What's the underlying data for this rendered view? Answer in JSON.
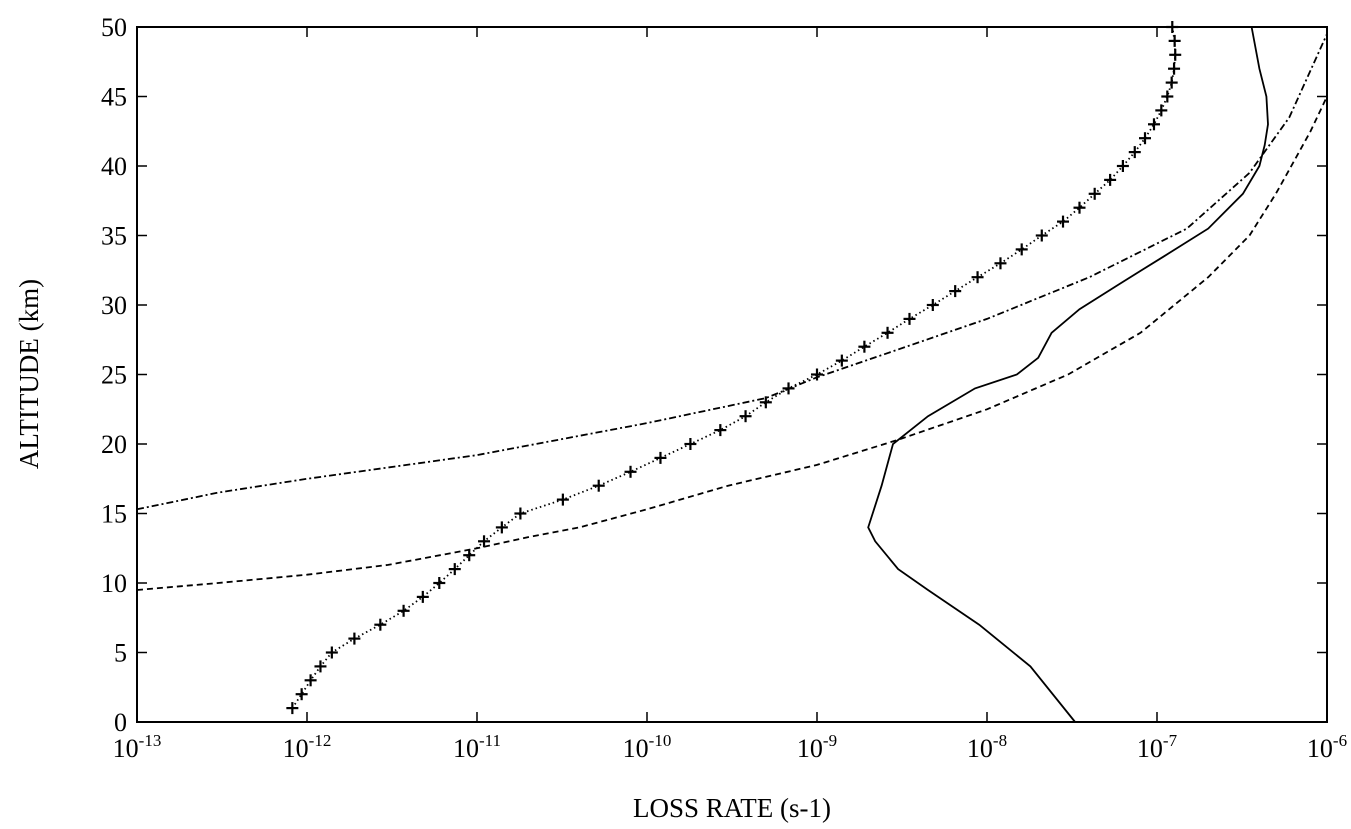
{
  "chart_data": {
    "type": "line",
    "title": "",
    "xlabel": "LOSS RATE (s-1)",
    "ylabel": "ALTITUDE (km)",
    "xscale": "log",
    "xlim": [
      1e-13,
      1e-06
    ],
    "ylim": [
      0,
      50
    ],
    "grid": false,
    "legend": "none",
    "x_ticks": [
      {
        "base": "10",
        "exp": "-13",
        "value": 1e-13
      },
      {
        "base": "10",
        "exp": "-12",
        "value": 1e-12
      },
      {
        "base": "10",
        "exp": "-11",
        "value": 1e-11
      },
      {
        "base": "10",
        "exp": "-10",
        "value": 1e-10
      },
      {
        "base": "10",
        "exp": "-9",
        "value": 1e-09
      },
      {
        "base": "10",
        "exp": "-8",
        "value": 1e-08
      },
      {
        "base": "10",
        "exp": "-7",
        "value": 1e-07
      },
      {
        "base": "10",
        "exp": "-6",
        "value": 1e-06
      }
    ],
    "y_ticks": [
      "0",
      "5",
      "10",
      "15",
      "20",
      "25",
      "30",
      "35",
      "40",
      "45",
      "50"
    ],
    "series": [
      {
        "style": "solid",
        "points": [
          [
            3.3e-08,
            0
          ],
          [
            1.8e-08,
            4
          ],
          [
            9e-09,
            7
          ],
          [
            4.5e-09,
            9.5
          ],
          [
            3e-09,
            11
          ],
          [
            2.2e-09,
            13
          ],
          [
            2e-09,
            14
          ],
          [
            2.4e-09,
            17
          ],
          [
            2.8e-09,
            20
          ],
          [
            4.5e-09,
            22
          ],
          [
            8.5e-09,
            24
          ],
          [
            1.5e-08,
            25
          ],
          [
            2e-08,
            26.2
          ],
          [
            2.4e-08,
            28
          ],
          [
            3.5e-08,
            29.7
          ],
          [
            6e-08,
            31.5
          ],
          [
            1.1e-07,
            33.5
          ],
          [
            2e-07,
            35.5
          ],
          [
            3.2e-07,
            38
          ],
          [
            4e-07,
            40
          ],
          [
            4.3e-07,
            41.5
          ],
          [
            4.5e-07,
            43
          ],
          [
            4.4e-07,
            45
          ],
          [
            4e-07,
            47
          ],
          [
            3.6e-07,
            50
          ]
        ]
      },
      {
        "style": "dashed",
        "points": [
          [
            1e-13,
            9.5
          ],
          [
            3e-13,
            10
          ],
          [
            1e-12,
            10.6
          ],
          [
            3e-12,
            11.3
          ],
          [
            1e-11,
            12.5
          ],
          [
            2e-11,
            13.3
          ],
          [
            4e-11,
            14
          ],
          [
            1e-10,
            15.3
          ],
          [
            3e-10,
            17
          ],
          [
            1e-09,
            18.5
          ],
          [
            3e-09,
            20.3
          ],
          [
            1e-08,
            22.5
          ],
          [
            3e-08,
            25
          ],
          [
            8e-08,
            28
          ],
          [
            2e-07,
            32
          ],
          [
            3.5e-07,
            35
          ],
          [
            5e-07,
            38
          ],
          [
            6.5e-07,
            40.5
          ],
          [
            8e-07,
            42.5
          ],
          [
            1e-06,
            45
          ]
        ]
      },
      {
        "style": "dash-dot",
        "points": [
          [
            1e-13,
            15.3
          ],
          [
            3e-13,
            16.5
          ],
          [
            1e-12,
            17.5
          ],
          [
            1e-11,
            19.2
          ],
          [
            1e-10,
            21.5
          ],
          [
            5e-10,
            23.3
          ],
          [
            1e-09,
            24.8
          ],
          [
            3e-09,
            26.8
          ],
          [
            1e-08,
            29
          ],
          [
            4e-08,
            32
          ],
          [
            1.5e-07,
            35.5
          ],
          [
            3.5e-07,
            39.5
          ],
          [
            6e-07,
            43.5
          ],
          [
            1e-06,
            49.5
          ]
        ]
      },
      {
        "style": "plus-markers-dotted",
        "points": [
          [
            8.2e-13,
            1
          ],
          [
            9.3e-13,
            2
          ],
          [
            1.05e-12,
            3
          ],
          [
            1.2e-12,
            4
          ],
          [
            1.4e-12,
            5
          ],
          [
            1.9e-12,
            6
          ],
          [
            2.7e-12,
            7
          ],
          [
            3.7e-12,
            8
          ],
          [
            4.8e-12,
            9
          ],
          [
            6e-12,
            10
          ],
          [
            7.4e-12,
            11
          ],
          [
            9e-12,
            12
          ],
          [
            1.1e-11,
            13
          ],
          [
            1.4e-11,
            14
          ],
          [
            1.8e-11,
            15
          ],
          [
            3.2e-11,
            16
          ],
          [
            5.2e-11,
            17
          ],
          [
            8e-11,
            18
          ],
          [
            1.2e-10,
            19
          ],
          [
            1.8e-10,
            20
          ],
          [
            2.7e-10,
            21
          ],
          [
            3.8e-10,
            22
          ],
          [
            5e-10,
            23
          ],
          [
            6.8e-10,
            24
          ],
          [
            1e-09,
            25
          ],
          [
            1.4e-09,
            26
          ],
          [
            1.9e-09,
            27
          ],
          [
            2.6e-09,
            28
          ],
          [
            3.5e-09,
            29
          ],
          [
            4.8e-09,
            30
          ],
          [
            6.5e-09,
            31
          ],
          [
            8.8e-09,
            32
          ],
          [
            1.2e-08,
            33
          ],
          [
            1.6e-08,
            34
          ],
          [
            2.1e-08,
            35
          ],
          [
            2.8e-08,
            36
          ],
          [
            3.5e-08,
            37
          ],
          [
            4.3e-08,
            38
          ],
          [
            5.3e-08,
            39
          ],
          [
            6.3e-08,
            40
          ],
          [
            7.4e-08,
            41
          ],
          [
            8.5e-08,
            42
          ],
          [
            9.6e-08,
            43
          ],
          [
            1.06e-07,
            44
          ],
          [
            1.15e-07,
            45
          ],
          [
            1.22e-07,
            46
          ],
          [
            1.26e-07,
            47
          ],
          [
            1.28e-07,
            48
          ],
          [
            1.27e-07,
            49
          ],
          [
            1.23e-07,
            50
          ]
        ]
      }
    ]
  }
}
